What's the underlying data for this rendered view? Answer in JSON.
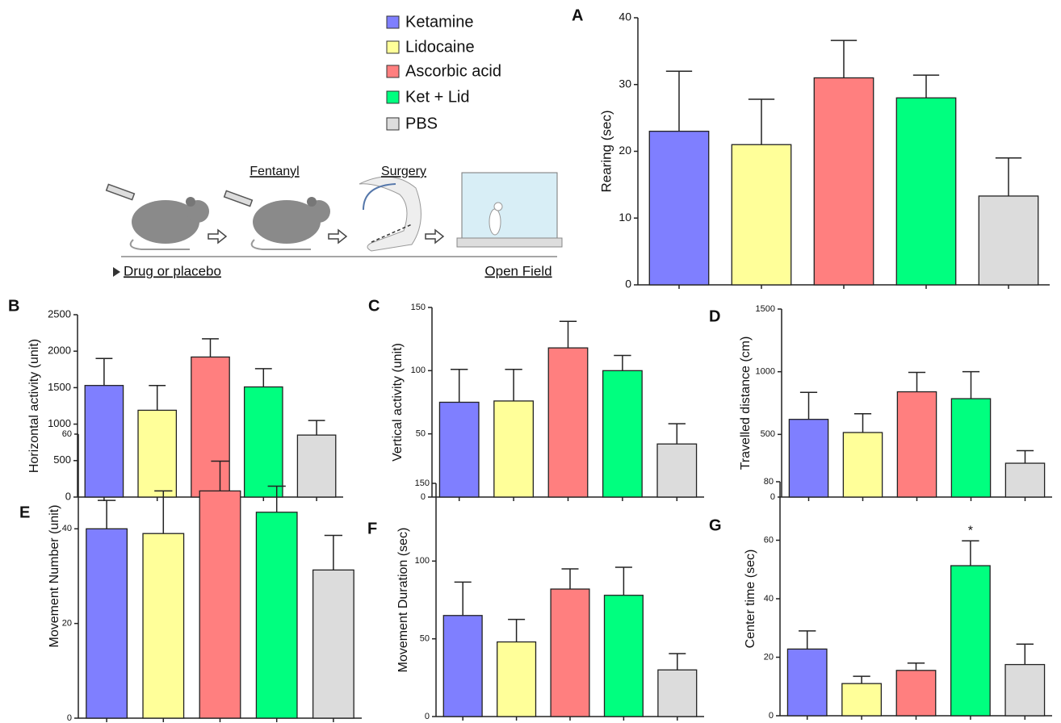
{
  "legend": {
    "items": [
      {
        "name": "Ketamine",
        "color": "#7f7fff"
      },
      {
        "name": "Lidocaine",
        "color": "#ffff99"
      },
      {
        "name": "Ascorbic acid",
        "color": "#ff7f7f"
      },
      {
        "name": "Ket + Lid",
        "color": "#00ff7f"
      },
      {
        "name": "PBS",
        "color": "#dcdcdc"
      }
    ]
  },
  "schematic": {
    "steps": [
      "Fentanyl",
      "Surgery"
    ],
    "start": "Drug or placebo",
    "end": "Open Field"
  },
  "chart_data": [
    {
      "type": "bar",
      "label": "A",
      "ylabel": "Rearing (sec)",
      "values": [
        23,
        21,
        31,
        28,
        13.3
      ],
      "errors": [
        9,
        6.8,
        5.6,
        3.4,
        5.7
      ],
      "ylim": [
        0,
        40
      ],
      "yticks": [
        0,
        10,
        20,
        30,
        40
      ]
    },
    {
      "type": "bar",
      "label": "B",
      "ylabel": "Horizontal activity (unit)",
      "values": [
        1530,
        1190,
        1920,
        1510,
        850
      ],
      "errors": [
        370,
        340,
        250,
        250,
        200
      ],
      "ylim": [
        0,
        2500
      ],
      "yticks": [
        0,
        500,
        1000,
        1500,
        2000,
        2500
      ]
    },
    {
      "type": "bar",
      "label": "C",
      "ylabel": "Vertical activity (unit)",
      "values": [
        75,
        76,
        118,
        100,
        42
      ],
      "errors": [
        26,
        25,
        21,
        12,
        16
      ],
      "ylim": [
        0,
        150
      ],
      "yticks": [
        0,
        50,
        100,
        150
      ]
    },
    {
      "type": "bar",
      "label": "D",
      "ylabel": "Travelled distance (cm)",
      "values": [
        620,
        515,
        840,
        785,
        270
      ],
      "errors": [
        215,
        150,
        155,
        215,
        100
      ],
      "ylim": [
        0,
        1500
      ],
      "yticks": [
        0,
        500,
        1000,
        1500
      ]
    },
    {
      "type": "bar",
      "label": "E",
      "ylabel": "Movement Number (unit)",
      "values": [
        40,
        39,
        48,
        43.5,
        31.3
      ],
      "errors": [
        6,
        9,
        6.3,
        5.5,
        7.3
      ],
      "ylim": [
        0,
        60
      ],
      "yticks": [
        0,
        20,
        40,
        60
      ]
    },
    {
      "type": "bar",
      "label": "F",
      "ylabel": "Movement Duration (sec)",
      "values": [
        65,
        48,
        82,
        78,
        30
      ],
      "errors": [
        21.5,
        14.5,
        13,
        18,
        10.5
      ],
      "ylim": [
        0,
        150
      ],
      "yticks": [
        0,
        50,
        100,
        150
      ]
    },
    {
      "type": "bar",
      "label": "G",
      "ylabel": "Center time (sec)",
      "values": [
        22.8,
        11,
        15.5,
        51.3,
        17.5
      ],
      "errors": [
        6.2,
        2.5,
        2.5,
        8.5,
        7
      ],
      "ylim": [
        0,
        80
      ],
      "yticks": [
        0,
        20,
        40,
        60,
        80
      ],
      "value_annotations": [
        null,
        null,
        null,
        "*",
        null
      ]
    }
  ]
}
